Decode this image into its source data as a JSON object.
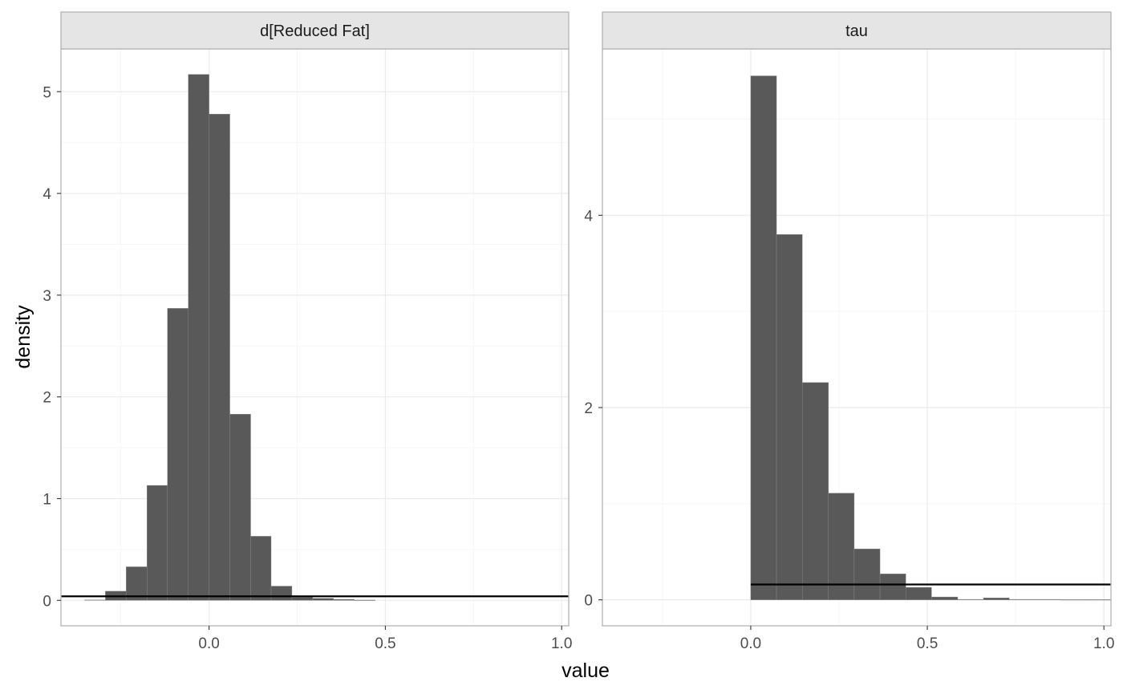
{
  "chart_data": [
    {
      "type": "bar",
      "facet": "d[Reduced Fat]",
      "xlabel": "value",
      "ylabel": "density",
      "xlim": [
        -0.42,
        1.02
      ],
      "ylim": [
        -0.25,
        5.42
      ],
      "xticks": [
        0.0,
        0.5,
        1.0
      ],
      "xtick_labels": [
        "0.0",
        "0.5",
        "1.0"
      ],
      "yticks": [
        0,
        1,
        2,
        3,
        4,
        5
      ],
      "ytick_labels": [
        "0",
        "1",
        "2",
        "3",
        "4",
        "5"
      ],
      "minor_x": [
        -0.25,
        0.25,
        0.75
      ],
      "minor_y": [
        0.5,
        1.5,
        2.5,
        3.5,
        4.5
      ],
      "bin_width": 0.0588,
      "bins": [
        {
          "x0": -0.353,
          "x1": -0.294,
          "y": 0.005
        },
        {
          "x0": -0.294,
          "x1": -0.235,
          "y": 0.09
        },
        {
          "x0": -0.235,
          "x1": -0.176,
          "y": 0.33
        },
        {
          "x0": -0.176,
          "x1": -0.118,
          "y": 1.13
        },
        {
          "x0": -0.118,
          "x1": -0.059,
          "y": 2.87
        },
        {
          "x0": -0.059,
          "x1": 0.0,
          "y": 5.17
        },
        {
          "x0": 0.0,
          "x1": 0.059,
          "y": 4.78
        },
        {
          "x0": 0.059,
          "x1": 0.118,
          "y": 1.83
        },
        {
          "x0": 0.118,
          "x1": 0.176,
          "y": 0.63
        },
        {
          "x0": 0.176,
          "x1": 0.235,
          "y": 0.14
        },
        {
          "x0": 0.235,
          "x1": 0.294,
          "y": 0.03
        },
        {
          "x0": 0.294,
          "x1": 0.353,
          "y": 0.02
        },
        {
          "x0": 0.353,
          "x1": 0.412,
          "y": 0.01
        },
        {
          "x0": 0.412,
          "x1": 0.471,
          "y": 0.003
        }
      ],
      "prior_line": {
        "x0": -0.42,
        "x1": 1.02,
        "y": 0.04
      }
    },
    {
      "type": "bar",
      "facet": "tau",
      "xlabel": "value",
      "ylabel": "density",
      "xlim": [
        -0.42,
        1.02
      ],
      "ylim": [
        -0.27,
        5.73
      ],
      "xticks": [
        0.0,
        0.5,
        1.0
      ],
      "xtick_labels": [
        "0.0",
        "0.5",
        "1.0"
      ],
      "yticks": [
        0,
        2,
        4
      ],
      "ytick_labels": [
        "0",
        "2",
        "4"
      ],
      "minor_x": [
        -0.25,
        0.25,
        0.75
      ],
      "minor_y": [
        1,
        3,
        5
      ],
      "bin_width": 0.0732,
      "bins": [
        {
          "x0": 0.0,
          "x1": 0.073,
          "y": 5.45
        },
        {
          "x0": 0.073,
          "x1": 0.146,
          "y": 3.8
        },
        {
          "x0": 0.146,
          "x1": 0.22,
          "y": 2.26
        },
        {
          "x0": 0.22,
          "x1": 0.293,
          "y": 1.11
        },
        {
          "x0": 0.293,
          "x1": 0.366,
          "y": 0.53
        },
        {
          "x0": 0.366,
          "x1": 0.439,
          "y": 0.27
        },
        {
          "x0": 0.439,
          "x1": 0.512,
          "y": 0.13
        },
        {
          "x0": 0.512,
          "x1": 0.586,
          "y": 0.03
        },
        {
          "x0": 0.586,
          "x1": 0.659,
          "y": 0.005
        },
        {
          "x0": 0.659,
          "x1": 0.732,
          "y": 0.02
        },
        {
          "x0": 0.732,
          "x1": 0.805,
          "y": 0.005
        },
        {
          "x0": 0.805,
          "x1": 0.878,
          "y": 0.005
        },
        {
          "x0": 0.878,
          "x1": 0.951,
          "y": 0.002
        },
        {
          "x0": 0.951,
          "x1": 1.02,
          "y": 0.002
        }
      ],
      "prior_line": {
        "x0": 0.0,
        "x1": 1.02,
        "y": 0.16
      }
    }
  ],
  "labels": {
    "xlabel": "value",
    "ylabel": "density"
  },
  "colors": {
    "bar_fill": "#595959",
    "bar_edge": "#8a8a8a",
    "prior_line": "#000000",
    "strip_bg": "#e5e5e5",
    "strip_border": "#b3b3b3",
    "panel_border": "#b3b3b3",
    "grid_major": "#ebebeb",
    "grid_minor": "#f5f5f5"
  }
}
